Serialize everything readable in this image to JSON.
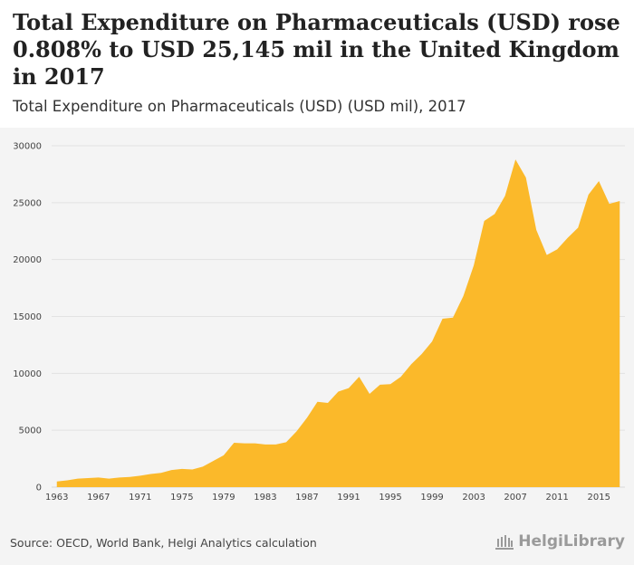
{
  "header": {
    "title": "Total Expenditure on Pharmaceuticals (USD) rose 0.808% to USD 25,145 mil in the United Kingdom in 2017",
    "subtitle": "Total Expenditure on Pharmaceuticals (USD) (USD mil), 2017"
  },
  "footer": {
    "source": "Source: OECD, World Bank, Helgi Analytics calculation",
    "logo_text": "HelgiLibrary"
  },
  "colors": {
    "area_fill": "#fbb92a",
    "grid": "#e2e2e2",
    "axis": "#d8d8d8"
  },
  "chart_data": {
    "type": "area",
    "x": [
      1963,
      1964,
      1965,
      1966,
      1967,
      1968,
      1969,
      1970,
      1971,
      1972,
      1973,
      1974,
      1975,
      1976,
      1977,
      1978,
      1979,
      1980,
      1981,
      1982,
      1983,
      1984,
      1985,
      1986,
      1987,
      1988,
      1989,
      1990,
      1991,
      1992,
      1993,
      1994,
      1995,
      1996,
      1997,
      1998,
      1999,
      2000,
      2001,
      2002,
      2003,
      2004,
      2005,
      2006,
      2007,
      2008,
      2009,
      2010,
      2011,
      2012,
      2013,
      2014,
      2015,
      2016,
      2017
    ],
    "values": [
      500,
      600,
      750,
      800,
      850,
      750,
      850,
      900,
      1000,
      1150,
      1250,
      1500,
      1600,
      1550,
      1800,
      2300,
      2800,
      3900,
      3850,
      3850,
      3750,
      3750,
      3950,
      4900,
      6100,
      7500,
      7400,
      8400,
      8700,
      9700,
      8200,
      9000,
      9050,
      9700,
      10800,
      11700,
      12800,
      14800,
      14900,
      16800,
      19500,
      23400,
      24000,
      25600,
      28800,
      27200,
      22600,
      20400,
      20900,
      21900,
      22800,
      25700,
      26900,
      24900,
      25145
    ],
    "title": "",
    "xlabel": "",
    "ylabel": "",
    "xlim": [
      1962.5,
      2017.5
    ],
    "ylim": [
      0,
      30000
    ],
    "y_ticks": [
      0,
      5000,
      10000,
      15000,
      20000,
      25000,
      30000
    ],
    "x_ticks": [
      1963,
      1967,
      1971,
      1975,
      1979,
      1983,
      1987,
      1991,
      1995,
      1999,
      2003,
      2007,
      2011,
      2015
    ],
    "grid": true,
    "legend": "none"
  }
}
